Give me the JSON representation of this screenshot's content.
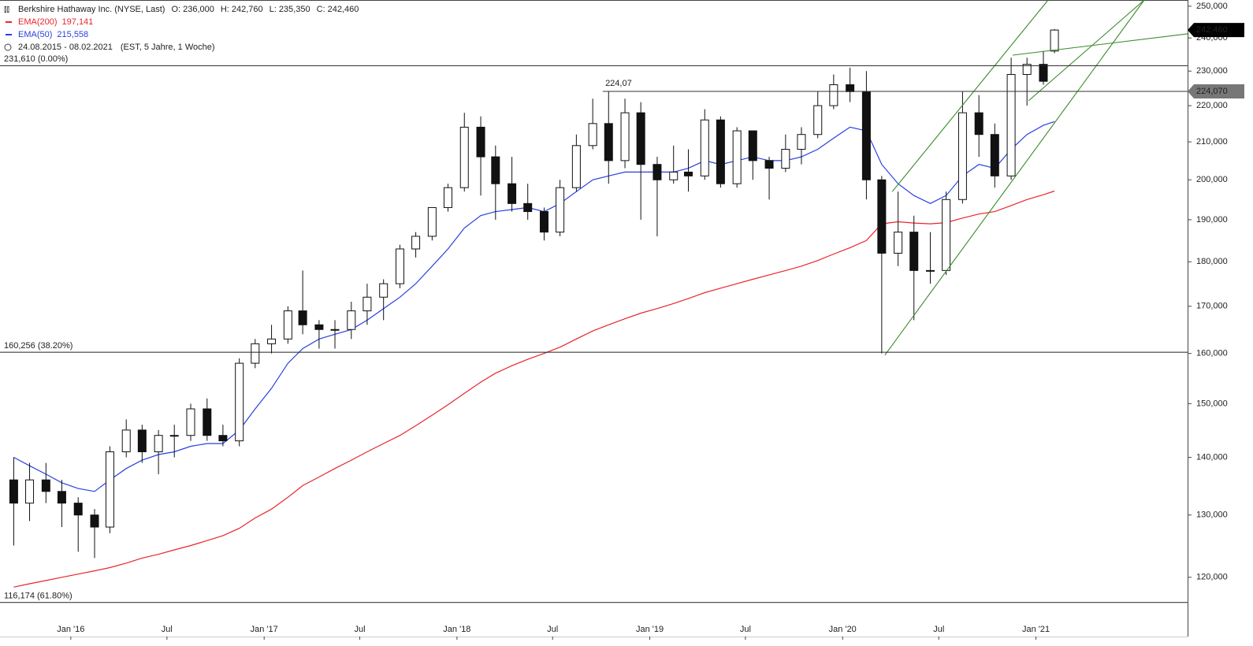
{
  "chart_data": {
    "type": "candlestick",
    "title": "Berkshire Hathaway Inc. (NYSE, Last)",
    "ohlc_summary": [
      {
        "label": "O:",
        "value": "236,000"
      },
      {
        "label": "H:",
        "value": "242,760"
      },
      {
        "label": "L:",
        "value": "235,350"
      },
      {
        "label": "C:",
        "value": "242,460"
      }
    ],
    "date_range": "24.08.2015 - 08.02.2021",
    "settings": "(EST, 5 Jahre, 1 Woche)",
    "log_scale": true,
    "xlim": [
      "2015-08-20",
      "2021-10-15"
    ],
    "ylim": [
      111200,
      252000
    ],
    "yticks": [
      {
        "value": 120000,
        "label": "120,000"
      },
      {
        "value": 130000,
        "label": "130,000"
      },
      {
        "value": 140000,
        "label": "140,000"
      },
      {
        "value": 150000,
        "label": "150,000"
      },
      {
        "value": 160000,
        "label": "160,000"
      },
      {
        "value": 170000,
        "label": "170,000"
      },
      {
        "value": 180000,
        "label": "180,000"
      },
      {
        "value": 190000,
        "label": "190,000"
      },
      {
        "value": 200000,
        "label": "200,000"
      },
      {
        "value": 210000,
        "label": "210,000"
      },
      {
        "value": 220000,
        "label": "220,000"
      },
      {
        "value": 230000,
        "label": "230,000"
      },
      {
        "value": 240000,
        "label": "240,000"
      },
      {
        "value": 250000,
        "label": "250,000"
      }
    ],
    "xticks": [
      {
        "value": "2016-01-01",
        "label": "Jan '16"
      },
      {
        "value": "2016-07-01",
        "label": "Jul"
      },
      {
        "value": "2017-01-01",
        "label": "Jan '17"
      },
      {
        "value": "2017-07-01",
        "label": "Jul"
      },
      {
        "value": "2018-01-01",
        "label": "Jan '18"
      },
      {
        "value": "2018-07-01",
        "label": "Jul"
      },
      {
        "value": "2019-01-01",
        "label": "Jan '19"
      },
      {
        "value": "2019-07-01",
        "label": "Jul"
      },
      {
        "value": "2020-01-01",
        "label": "Jan '20"
      },
      {
        "value": "2020-07-01",
        "label": "Jul"
      },
      {
        "value": "2021-01-01",
        "label": "Jan '21"
      }
    ],
    "x": [
      "2015-09-15",
      "2015-10-15",
      "2015-11-15",
      "2015-12-15",
      "2016-01-15",
      "2016-02-15",
      "2016-03-15",
      "2016-04-15",
      "2016-05-15",
      "2016-06-15",
      "2016-07-15",
      "2016-08-15",
      "2016-09-15",
      "2016-10-15",
      "2016-11-15",
      "2016-12-15",
      "2017-01-15",
      "2017-02-15",
      "2017-03-15",
      "2017-04-15",
      "2017-05-15",
      "2017-06-15",
      "2017-07-15",
      "2017-08-15",
      "2017-09-15",
      "2017-10-15",
      "2017-11-15",
      "2017-12-15",
      "2018-01-15",
      "2018-02-15",
      "2018-03-15",
      "2018-04-15",
      "2018-05-15",
      "2018-06-15",
      "2018-07-15",
      "2018-08-15",
      "2018-09-15",
      "2018-10-15",
      "2018-11-15",
      "2018-12-15",
      "2019-01-15",
      "2019-02-15",
      "2019-03-15",
      "2019-04-15",
      "2019-05-15",
      "2019-06-15",
      "2019-07-15",
      "2019-08-15",
      "2019-09-15",
      "2019-10-15",
      "2019-11-15",
      "2019-12-15",
      "2020-01-15",
      "2020-02-15",
      "2020-03-15",
      "2020-04-15",
      "2020-05-15",
      "2020-06-15",
      "2020-07-15",
      "2020-08-15",
      "2020-09-15",
      "2020-10-15",
      "2020-11-15",
      "2020-12-15",
      "2021-01-15",
      "2021-02-05"
    ],
    "open": [
      136000,
      132000,
      136000,
      134000,
      132000,
      130000,
      128000,
      141000,
      145000,
      141000,
      144000,
      144000,
      149000,
      144000,
      143000,
      158000,
      162000,
      163000,
      169000,
      166000,
      165000,
      165000,
      169000,
      172000,
      175000,
      183000,
      186000,
      193000,
      198000,
      214000,
      206000,
      199000,
      194000,
      192000,
      187000,
      198000,
      209000,
      215000,
      205000,
      218000,
      204000,
      200000,
      202000,
      201000,
      216000,
      199000,
      213000,
      205000,
      203000,
      208000,
      212000,
      220000,
      226000,
      224000,
      200000,
      182000,
      187000,
      178000,
      178000,
      195000,
      218000,
      212000,
      201000,
      229000,
      232000,
      236000
    ],
    "high": [
      140000,
      139000,
      139000,
      136000,
      133000,
      131000,
      142000,
      147000,
      146000,
      145000,
      146000,
      150000,
      151000,
      146000,
      159000,
      163000,
      166000,
      170000,
      178000,
      167000,
      167000,
      171000,
      175000,
      176000,
      184000,
      187000,
      193000,
      199000,
      218000,
      217000,
      209000,
      206000,
      199000,
      193000,
      200000,
      212000,
      222000,
      224000,
      222000,
      221000,
      206000,
      209000,
      208000,
      219000,
      217000,
      214000,
      213000,
      206000,
      212000,
      214000,
      224000,
      229000,
      231000,
      230000,
      201000,
      197000,
      191000,
      187000,
      197000,
      224000,
      223000,
      215000,
      234000,
      234000,
      236000,
      242760
    ],
    "low": [
      125000,
      129000,
      132000,
      128000,
      124000,
      123000,
      127000,
      140000,
      139000,
      137000,
      140000,
      143000,
      143000,
      142000,
      142000,
      157000,
      160000,
      162000,
      164000,
      161000,
      161000,
      163000,
      166000,
      167000,
      174000,
      181000,
      185000,
      192000,
      197000,
      196000,
      190000,
      192000,
      190000,
      185000,
      186000,
      197000,
      208000,
      199000,
      203000,
      190000,
      186000,
      199000,
      197000,
      200000,
      198000,
      198000,
      200000,
      195000,
      202000,
      204000,
      211000,
      219000,
      221000,
      195000,
      160000,
      179000,
      167000,
      175000,
      177000,
      194000,
      206000,
      198000,
      200000,
      220000,
      226000,
      235350
    ],
    "close": [
      132000,
      136000,
      134000,
      132000,
      130000,
      128000,
      141000,
      145000,
      141000,
      144000,
      144000,
      149000,
      144000,
      143000,
      158000,
      162000,
      163000,
      169000,
      166000,
      165000,
      165000,
      169000,
      172000,
      175000,
      183000,
      186000,
      193000,
      198000,
      214000,
      206000,
      199000,
      194000,
      192000,
      187000,
      198000,
      209000,
      215000,
      205000,
      218000,
      204000,
      200000,
      202000,
      201000,
      216000,
      199000,
      213000,
      205000,
      203000,
      208000,
      212000,
      220000,
      226000,
      224000,
      200000,
      182000,
      187000,
      178000,
      178000,
      195000,
      218000,
      212000,
      201000,
      229000,
      232000,
      227000,
      242460
    ],
    "up_color": "#ffffff",
    "down_color": "#111111",
    "series": [
      {
        "name": "EMA(200)",
        "color": "#e8262b",
        "last_label": "197,141",
        "values": [
          118500,
          119000,
          119500,
          120000,
          120500,
          121000,
          121500,
          122200,
          123000,
          123600,
          124300,
          125000,
          125800,
          126600,
          127800,
          129500,
          131000,
          133000,
          135000,
          136500,
          138000,
          139500,
          141000,
          142500,
          144000,
          145800,
          147800,
          149800,
          152000,
          154200,
          156000,
          157500,
          158800,
          160000,
          161300,
          163000,
          164700,
          166000,
          167300,
          168500,
          169500,
          170600,
          171700,
          173000,
          174000,
          175000,
          176000,
          177000,
          178000,
          179000,
          180300,
          181800,
          183300,
          185000,
          189000,
          189500,
          189200,
          189000,
          189300,
          190400,
          191400,
          192000,
          193500,
          195000,
          196200,
          197141
        ]
      },
      {
        "name": "EMA(50)",
        "color": "#2b3fe0",
        "last_label": "215,558",
        "values": [
          140000,
          138500,
          137000,
          135500,
          134500,
          134000,
          136000,
          138000,
          139500,
          140500,
          141000,
          142000,
          142500,
          142500,
          145000,
          149000,
          153000,
          158000,
          161000,
          163000,
          164000,
          165000,
          167000,
          169500,
          172000,
          175000,
          179000,
          183000,
          188000,
          191000,
          192000,
          192500,
          193000,
          192000,
          194000,
          197000,
          200000,
          201000,
          202000,
          202000,
          202000,
          202000,
          203000,
          205000,
          204000,
          205000,
          206000,
          205000,
          205000,
          206000,
          208000,
          211000,
          214000,
          213000,
          204000,
          199000,
          196000,
          194000,
          196000,
          201000,
          204000,
          203000,
          208000,
          212000,
          214500,
          215558
        ]
      }
    ],
    "levels": [
      {
        "value": 231610,
        "label": "231,610 (0.00%)"
      },
      {
        "value": 160256,
        "label": "160,256 (38.20%)"
      },
      {
        "value": 116174,
        "label": "116,174 (61.80%)"
      }
    ],
    "resistance": {
      "value": 224070,
      "start": "2018-10-04",
      "label": "224,07",
      "tag": "224,070"
    },
    "last_price": {
      "value": 242460,
      "label": "242,460"
    },
    "trendline_color": "#3a8a2a",
    "trendlines": [
      [
        [
          "2020-03-21",
          159650
        ],
        [
          "2021-07-25",
          252000
        ]
      ],
      [
        [
          "2020-04-04",
          197000
        ],
        [
          "2021-01-24",
          252000
        ]
      ],
      [
        [
          "2020-12-18",
          221400
        ],
        [
          "2021-07-25",
          252000
        ]
      ],
      [
        [
          "2020-11-18",
          234760
        ],
        [
          "2021-10-15",
          241270
        ]
      ]
    ]
  }
}
